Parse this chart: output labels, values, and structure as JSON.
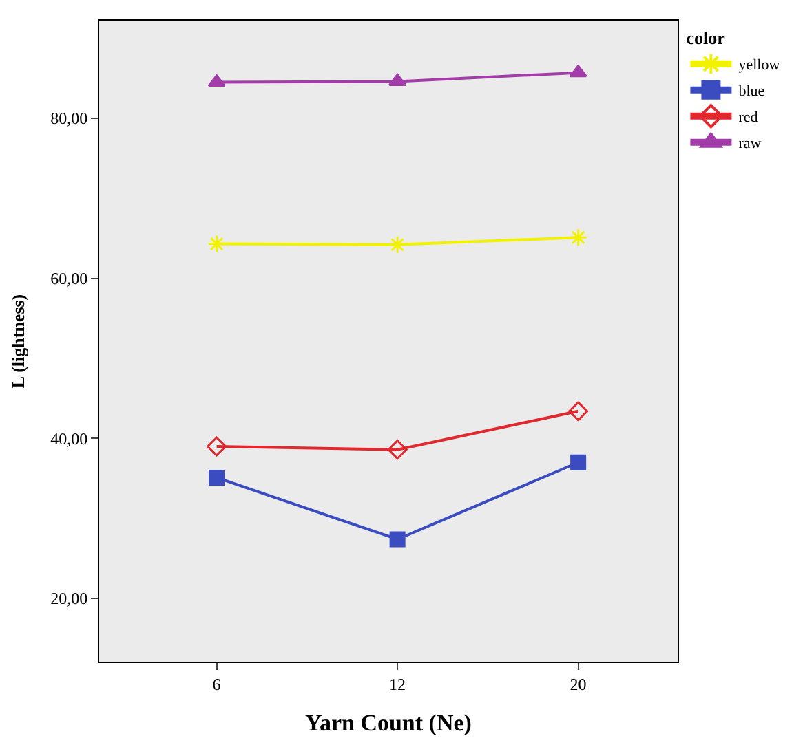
{
  "chart_data": {
    "type": "line",
    "xlabel": "Yarn Count (Ne)",
    "ylabel": "L (lightness)",
    "legend_title": "color",
    "categories": [
      "6",
      "12",
      "20"
    ],
    "series": [
      {
        "name": "yellow",
        "color": "#f2f200",
        "marker": "cross",
        "values": [
          64.3,
          64.2,
          65.1
        ]
      },
      {
        "name": "blue",
        "color": "#3b4cc0",
        "marker": "square",
        "values": [
          35.1,
          27.4,
          37.0
        ]
      },
      {
        "name": "red",
        "color": "#e0282e",
        "marker": "diamond",
        "values": [
          39.0,
          38.6,
          43.4
        ]
      },
      {
        "name": "raw",
        "color": "#a23ca8",
        "marker": "triangle",
        "values": [
          84.5,
          84.6,
          85.7
        ]
      }
    ],
    "ylim": [
      12.1,
      92.2
    ],
    "yticks": [
      {
        "value": 20,
        "label": "20,00"
      },
      {
        "value": 40,
        "label": "40,00"
      },
      {
        "value": 60,
        "label": "60,00"
      },
      {
        "value": 80,
        "label": "80,00"
      }
    ],
    "grid": false,
    "legend": "top right"
  }
}
